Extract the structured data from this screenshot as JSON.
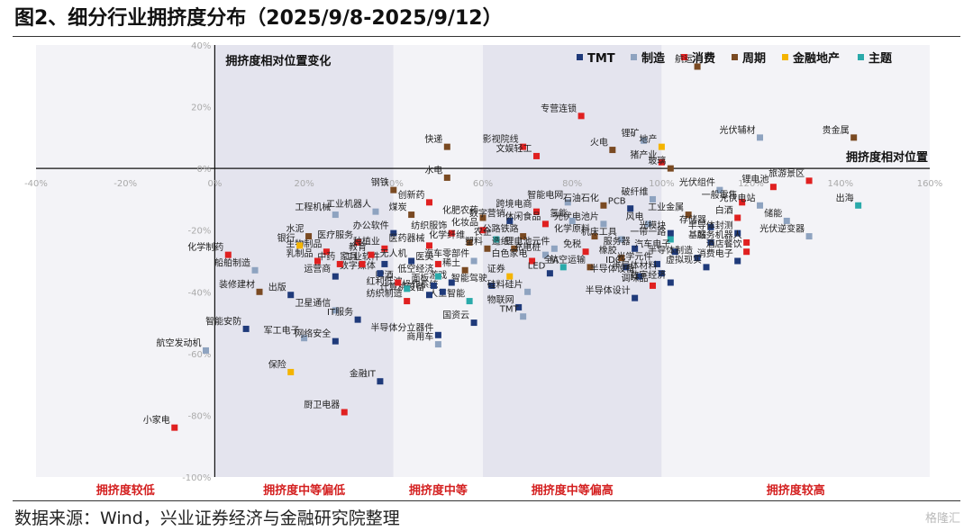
{
  "title": "图2、细分行业拥挤度分布（2025/9/8-2025/9/12）",
  "source": "数据来源：Wind，兴业证券经济与金融研究院整理",
  "watermark": "格隆汇",
  "chart_data": {
    "type": "scatter",
    "title": "拥挤度相对位置变化",
    "xlabel": "拥挤度相对位置",
    "ylabel": "",
    "xlim": [
      -40,
      160
    ],
    "ylim": [
      -100,
      40
    ],
    "x_ticks": [
      "-40%",
      "-20%",
      "0%",
      "20%",
      "40%",
      "60%",
      "80%",
      "100%",
      "120%",
      "140%",
      "160%"
    ],
    "y_ticks": [
      "40%",
      "20%",
      "0%",
      "-20%",
      "-40%",
      "-60%",
      "-80%",
      "-100%"
    ],
    "legend_position": "top-right",
    "grid": false,
    "band_colors": [
      "#f3f3f7",
      "#e4e4ee"
    ],
    "zones": [
      {
        "label": "拥挤度较低",
        "from": -40,
        "to": 0
      },
      {
        "label": "拥挤度中等偏低",
        "from": 0,
        "to": 40
      },
      {
        "label": "拥挤度中等",
        "from": 40,
        "to": 60
      },
      {
        "label": "拥挤度中等偏高",
        "from": 60,
        "to": 100
      },
      {
        "label": "拥挤度较高",
        "from": 100,
        "to": 160
      }
    ],
    "categories": [
      {
        "key": "tmt",
        "name": "TMT",
        "color": "#1f3a7a"
      },
      {
        "key": "zz",
        "name": "制造",
        "color": "#8ea3c0"
      },
      {
        "key": "xf",
        "name": "消费",
        "color": "#e02020"
      },
      {
        "key": "zq",
        "name": "周期",
        "color": "#7a4a22"
      },
      {
        "key": "jr",
        "name": "金融地产",
        "color": "#f4b400"
      },
      {
        "key": "zt",
        "name": "主题",
        "color": "#2aaaaa"
      }
    ],
    "points": [
      {
        "label": "航运",
        "x": 108,
        "y": 33,
        "cat": "zq"
      },
      {
        "label": "专营连锁",
        "x": 82,
        "y": 17,
        "cat": "xf"
      },
      {
        "label": "影视院线",
        "x": 69,
        "y": 7,
        "cat": "xf"
      },
      {
        "label": "文娱轻工",
        "x": 72,
        "y": 4,
        "cat": "xf"
      },
      {
        "label": "快递",
        "x": 52,
        "y": 7,
        "cat": "zq"
      },
      {
        "label": "火电",
        "x": 89,
        "y": 6,
        "cat": "zq"
      },
      {
        "label": "锂矿",
        "x": 96,
        "y": 9,
        "cat": "zz"
      },
      {
        "label": "地产",
        "x": 100,
        "y": 7,
        "cat": "jr"
      },
      {
        "label": "猪产业",
        "x": 100,
        "y": 2,
        "cat": "xf"
      },
      {
        "label": "玻璃",
        "x": 102,
        "y": 0,
        "cat": "zq"
      },
      {
        "label": "光伏辅材",
        "x": 122,
        "y": 10,
        "cat": "zz"
      },
      {
        "label": "贵金属",
        "x": 143,
        "y": 10,
        "cat": "zq"
      },
      {
        "label": "水电",
        "x": 52,
        "y": -3,
        "cat": "zq"
      },
      {
        "label": "钢铁",
        "x": 40,
        "y": -7,
        "cat": "zq"
      },
      {
        "label": "创新药",
        "x": 48,
        "y": -11,
        "cat": "xf"
      },
      {
        "label": "工业机器人",
        "x": 36,
        "y": -14,
        "cat": "zz"
      },
      {
        "label": "工程机械",
        "x": 27,
        "y": -15,
        "cat": "zz"
      },
      {
        "label": "煤炭",
        "x": 44,
        "y": -15,
        "cat": "zq"
      },
      {
        "label": "水泥",
        "x": 21,
        "y": -22,
        "cat": "zq"
      },
      {
        "label": "办公软件",
        "x": 40,
        "y": -21,
        "cat": "tmt"
      },
      {
        "label": "医疗服务",
        "x": 32,
        "y": -24,
        "cat": "xf"
      },
      {
        "label": "种植业",
        "x": 38,
        "y": -26,
        "cat": "xf"
      },
      {
        "label": "医药器械",
        "x": 48,
        "y": -25,
        "cat": "xf"
      },
      {
        "label": "纺织服饰",
        "x": 53,
        "y": -21,
        "cat": "xf"
      },
      {
        "label": "化肥农药",
        "x": 60,
        "y": -16,
        "cat": "zq"
      },
      {
        "label": "数字营销",
        "x": 66,
        "y": -17,
        "cat": "tmt"
      },
      {
        "label": "跨境电商",
        "x": 72,
        "y": -14,
        "cat": "xf"
      },
      {
        "label": "智能电网",
        "x": 79,
        "y": -11,
        "cat": "zz"
      },
      {
        "label": "石油石化",
        "x": 87,
        "y": -12,
        "cat": "zq"
      },
      {
        "label": "PCB",
        "x": 93,
        "y": -13,
        "cat": "tmt"
      },
      {
        "label": "破纤维",
        "x": 98,
        "y": -10,
        "cat": "zz"
      },
      {
        "label": "光伏组件",
        "x": 113,
        "y": -7,
        "cat": "zz"
      },
      {
        "label": "锂电池",
        "x": 125,
        "y": -6,
        "cat": "xf"
      },
      {
        "label": "一般零售",
        "x": 118,
        "y": -11,
        "cat": "xf"
      },
      {
        "label": "旅游景区",
        "x": 133,
        "y": -4,
        "cat": "xf"
      },
      {
        "label": "出海",
        "x": 144,
        "y": -12,
        "cat": "zt"
      },
      {
        "label": "光伏电站",
        "x": 122,
        "y": -12,
        "cat": "zz"
      },
      {
        "label": "工业金属",
        "x": 106,
        "y": -15,
        "cat": "zq"
      },
      {
        "label": "储能",
        "x": 128,
        "y": -17,
        "cat": "zz"
      },
      {
        "label": "白酒",
        "x": 117,
        "y": -16,
        "cat": "xf"
      },
      {
        "label": "存储器",
        "x": 111,
        "y": -19,
        "cat": "tmt"
      },
      {
        "label": "半导体封测",
        "x": 117,
        "y": -21,
        "cat": "tmt"
      },
      {
        "label": "光伏逆变器",
        "x": 133,
        "y": -22,
        "cat": "zz"
      },
      {
        "label": "基站",
        "x": 111,
        "y": -24,
        "cat": "tmt"
      },
      {
        "label": "服务机器人",
        "x": 119,
        "y": -24,
        "cat": "xf"
      },
      {
        "label": "酒店餐饮",
        "x": 119,
        "y": -27,
        "cat": "xf"
      },
      {
        "label": "消费电子",
        "x": 117,
        "y": -30,
        "cat": "tmt"
      },
      {
        "label": "风电",
        "x": 97,
        "y": -18,
        "cat": "zz"
      },
      {
        "label": "光模块",
        "x": 102,
        "y": -21,
        "cat": "tmt"
      },
      {
        "label": "光伏电池片",
        "x": 87,
        "y": -18,
        "cat": "zz"
      },
      {
        "label": "氢能",
        "x": 80,
        "y": -17,
        "cat": "zz"
      },
      {
        "label": "休闲食品",
        "x": 74,
        "y": -18,
        "cat": "xf"
      },
      {
        "label": "化妆品",
        "x": 60,
        "y": -20,
        "cat": "xf"
      },
      {
        "label": "公路铁路",
        "x": 69,
        "y": -22,
        "cat": "zq"
      },
      {
        "label": "农企",
        "x": 63,
        "y": -23,
        "cat": "zt"
      },
      {
        "label": "化学原料",
        "x": 85,
        "y": -22,
        "cat": "zq"
      },
      {
        "label": "机床工具",
        "x": 91,
        "y": -23,
        "cat": "zz"
      },
      {
        "label": "一带一路",
        "x": 102,
        "y": -23,
        "cat": "zt"
      },
      {
        "label": "化学纤维",
        "x": 57,
        "y": -24,
        "cat": "zq"
      },
      {
        "label": "塑料",
        "x": 61,
        "y": -26,
        "cat": "zq"
      },
      {
        "label": "造纸",
        "x": 67,
        "y": -26,
        "cat": "zq"
      },
      {
        "label": "锂电池元件",
        "x": 76,
        "y": -26,
        "cat": "zz"
      },
      {
        "label": "充电桩",
        "x": 74,
        "y": -28,
        "cat": "zz"
      },
      {
        "label": "免税",
        "x": 83,
        "y": -27,
        "cat": "xf"
      },
      {
        "label": "服务器",
        "x": 94,
        "y": -26,
        "cat": "tmt"
      },
      {
        "label": "汽车电子",
        "x": 103,
        "y": -27,
        "cat": "tmt"
      },
      {
        "label": "半导体制造",
        "x": 108,
        "y": -29,
        "cat": "tmt"
      },
      {
        "label": "橡胶",
        "x": 91,
        "y": -29,
        "cat": "zq"
      },
      {
        "label": "光学元件",
        "x": 99,
        "y": -31,
        "cat": "tmt"
      },
      {
        "label": "虚拟现实",
        "x": 110,
        "y": -32,
        "cat": "tmt"
      },
      {
        "label": "IDC",
        "x": 92,
        "y": -32,
        "cat": "tmt"
      },
      {
        "label": "航空运输",
        "x": 84,
        "y": -32,
        "cat": "zq"
      },
      {
        "label": "半导体材料",
        "x": 100,
        "y": -34,
        "cat": "tmt"
      },
      {
        "label": "半导体设备",
        "x": 95,
        "y": -35,
        "cat": "tmt"
      },
      {
        "label": "调味品",
        "x": 98,
        "y": -38,
        "cat": "xf"
      },
      {
        "label": "数字经济",
        "x": 102,
        "y": -37,
        "cat": "tmt"
      },
      {
        "label": "半导体设计",
        "x": 94,
        "y": -42,
        "cat": "tmt"
      },
      {
        "label": "全A",
        "x": 78,
        "y": -32,
        "cat": "zt"
      },
      {
        "label": "白色家电",
        "x": 71,
        "y": -30,
        "cat": "xf"
      },
      {
        "label": "LED",
        "x": 75,
        "y": -34,
        "cat": "tmt"
      },
      {
        "label": "汽车零部件",
        "x": 58,
        "y": -30,
        "cat": "zz"
      },
      {
        "label": "稀土",
        "x": 56,
        "y": -33,
        "cat": "zq"
      },
      {
        "label": "证券",
        "x": 66,
        "y": -35,
        "cat": "jr"
      },
      {
        "label": "智能驾驶",
        "x": 62,
        "y": -38,
        "cat": "tmt"
      },
      {
        "label": "硅料硅片",
        "x": 70,
        "y": -40,
        "cat": "zz"
      },
      {
        "label": "物联网",
        "x": 68,
        "y": -45,
        "cat": "tmt"
      },
      {
        "label": "TMT",
        "x": 69,
        "y": -48,
        "cat": "zz"
      },
      {
        "label": "人工智能",
        "x": 57,
        "y": -43,
        "cat": "zt"
      },
      {
        "label": "国资云",
        "x": 58,
        "y": -50,
        "cat": "tmt"
      },
      {
        "label": "操作系统",
        "x": 51,
        "y": -40,
        "cat": "tmt"
      },
      {
        "label": "游戏",
        "x": 53,
        "y": -37,
        "cat": "tmt"
      },
      {
        "label": "医美",
        "x": 50,
        "y": -31,
        "cat": "xf"
      },
      {
        "label": "低空经济",
        "x": 50,
        "y": -35,
        "cat": "zt"
      },
      {
        "label": "面板",
        "x": 49,
        "y": -38,
        "cat": "tmt"
      },
      {
        "label": "计算机设备",
        "x": 48,
        "y": -41,
        "cat": "tmt"
      },
      {
        "label": "纺织制造",
        "x": 43,
        "y": -43,
        "cat": "xf"
      },
      {
        "label": "红利低波",
        "x": 43,
        "y": -39,
        "cat": "zt"
      },
      {
        "label": "啤酒",
        "x": 41,
        "y": -37,
        "cat": "xf"
      },
      {
        "label": "无人机",
        "x": 44,
        "y": -30,
        "cat": "tmt"
      },
      {
        "label": "工业软件",
        "x": 38,
        "y": -31,
        "cat": "tmt"
      },
      {
        "label": "数字媒体",
        "x": 37,
        "y": -34,
        "cat": "tmt"
      },
      {
        "label": "家具",
        "x": 33,
        "y": -31,
        "cat": "xf"
      },
      {
        "label": "教育",
        "x": 35,
        "y": -28,
        "cat": "xf"
      },
      {
        "label": "生物制品",
        "x": 25,
        "y": -27,
        "cat": "xf"
      },
      {
        "label": "银行",
        "x": 19,
        "y": -25,
        "cat": "jr"
      },
      {
        "label": "乳制品",
        "x": 23,
        "y": -30,
        "cat": "xf"
      },
      {
        "label": "中药",
        "x": 28,
        "y": -31,
        "cat": "xf"
      },
      {
        "label": "运营商",
        "x": 27,
        "y": -35,
        "cat": "tmt"
      },
      {
        "label": "化学制药",
        "x": 3,
        "y": -28,
        "cat": "xf"
      },
      {
        "label": "船舶制造",
        "x": 9,
        "y": -33,
        "cat": "zz"
      },
      {
        "label": "装修建材",
        "x": 10,
        "y": -40,
        "cat": "zq"
      },
      {
        "label": "出版",
        "x": 17,
        "y": -41,
        "cat": "tmt"
      },
      {
        "label": "卫星通信",
        "x": 27,
        "y": -46,
        "cat": "zz"
      },
      {
        "label": "IT服务",
        "x": 32,
        "y": -49,
        "cat": "tmt"
      },
      {
        "label": "智能安防",
        "x": 7,
        "y": -52,
        "cat": "tmt"
      },
      {
        "label": "军工电子",
        "x": 20,
        "y": -55,
        "cat": "zz"
      },
      {
        "label": "网络安全",
        "x": 27,
        "y": -56,
        "cat": "tmt"
      },
      {
        "label": "航空发动机",
        "x": -2,
        "y": -59,
        "cat": "zz"
      },
      {
        "label": "保险",
        "x": 17,
        "y": -66,
        "cat": "jr"
      },
      {
        "label": "半导体分立器件",
        "x": 50,
        "y": -54,
        "cat": "tmt"
      },
      {
        "label": "商用车",
        "x": 50,
        "y": -57,
        "cat": "zz"
      },
      {
        "label": "金融IT",
        "x": 37,
        "y": -69,
        "cat": "tmt"
      },
      {
        "label": "厨卫电器",
        "x": 29,
        "y": -79,
        "cat": "xf"
      },
      {
        "label": "小家电",
        "x": -9,
        "y": -84,
        "cat": "xf"
      }
    ]
  }
}
